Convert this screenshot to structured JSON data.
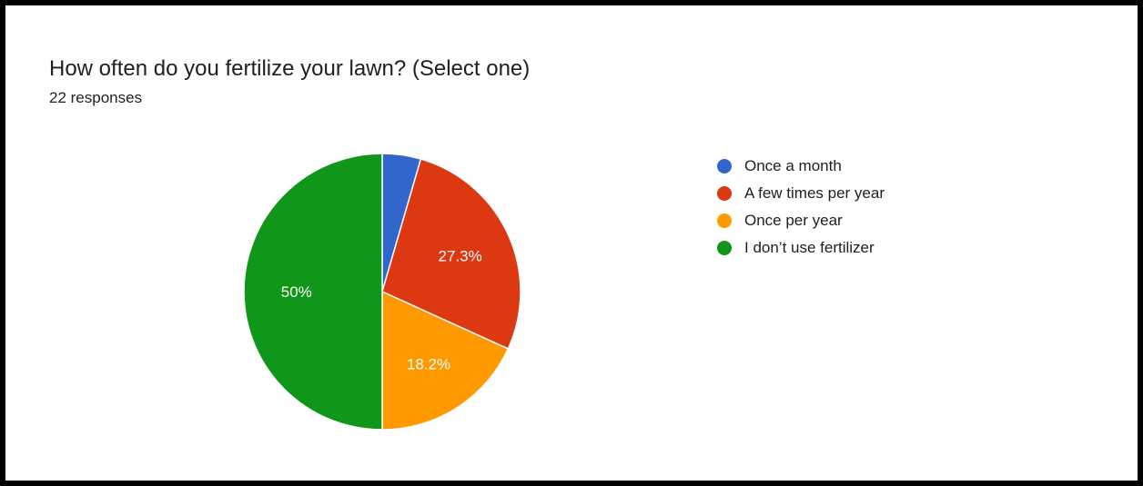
{
  "header": {
    "question": "How often do you fertilize your lawn? (Select one)",
    "responses": "22 responses"
  },
  "chart_data": {
    "type": "pie",
    "title": "How often do you fertilize your lawn? (Select one)",
    "total_responses": 22,
    "slices": [
      {
        "label": "Once a month",
        "percent": 4.5,
        "display": "",
        "color": "#3366cc"
      },
      {
        "label": "A few times per year",
        "percent": 27.3,
        "display": "27.3%",
        "color": "#dc3912"
      },
      {
        "label": "Once per year",
        "percent": 18.2,
        "display": "18.2%",
        "color": "#ff9900"
      },
      {
        "label": "I don’t use fertilizer",
        "percent": 50,
        "display": "50%",
        "color": "#109618"
      }
    ],
    "start_angle_deg": 90,
    "direction": "clockwise",
    "legend_position": "right"
  }
}
